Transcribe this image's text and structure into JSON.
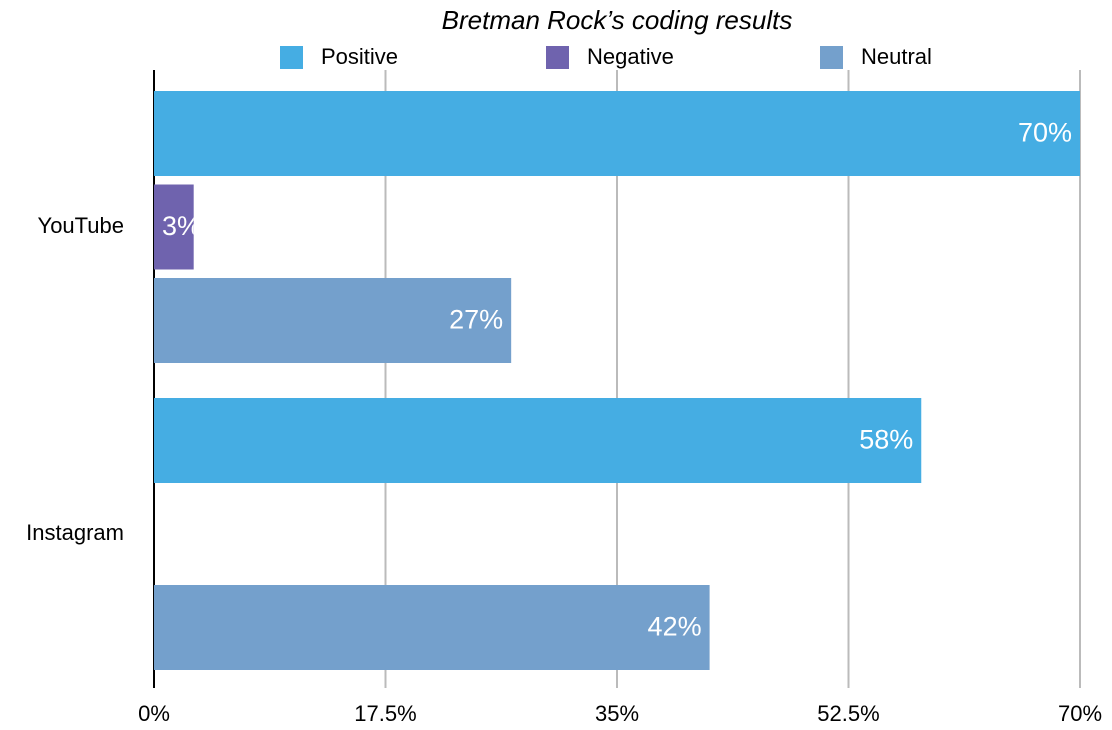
{
  "chart_data": {
    "type": "hbar",
    "title": "Bretman Rock’s coding results",
    "categories": [
      "YouTube",
      "Instagram"
    ],
    "series": [
      {
        "name": "Positive",
        "color": "#45ade3",
        "values": [
          70,
          58
        ],
        "value_labels": [
          "70%",
          "58%"
        ]
      },
      {
        "name": "Negative",
        "color": "#6f63ae",
        "values": [
          3,
          null
        ],
        "value_labels": [
          "3%",
          null
        ]
      },
      {
        "name": "Neutral",
        "color": "#74a0cc",
        "values": [
          27,
          42
        ],
        "value_labels": [
          "27%",
          "42%"
        ]
      }
    ],
    "xlim": [
      0,
      70
    ],
    "xticks": [
      {
        "value": 0,
        "label": "0%"
      },
      {
        "value": 17.5,
        "label": "17.5%"
      },
      {
        "value": 35,
        "label": "35%"
      },
      {
        "value": 52.5,
        "label": "52.5%"
      },
      {
        "value": 70,
        "label": "70%"
      }
    ],
    "grid": true,
    "legend": "top"
  }
}
